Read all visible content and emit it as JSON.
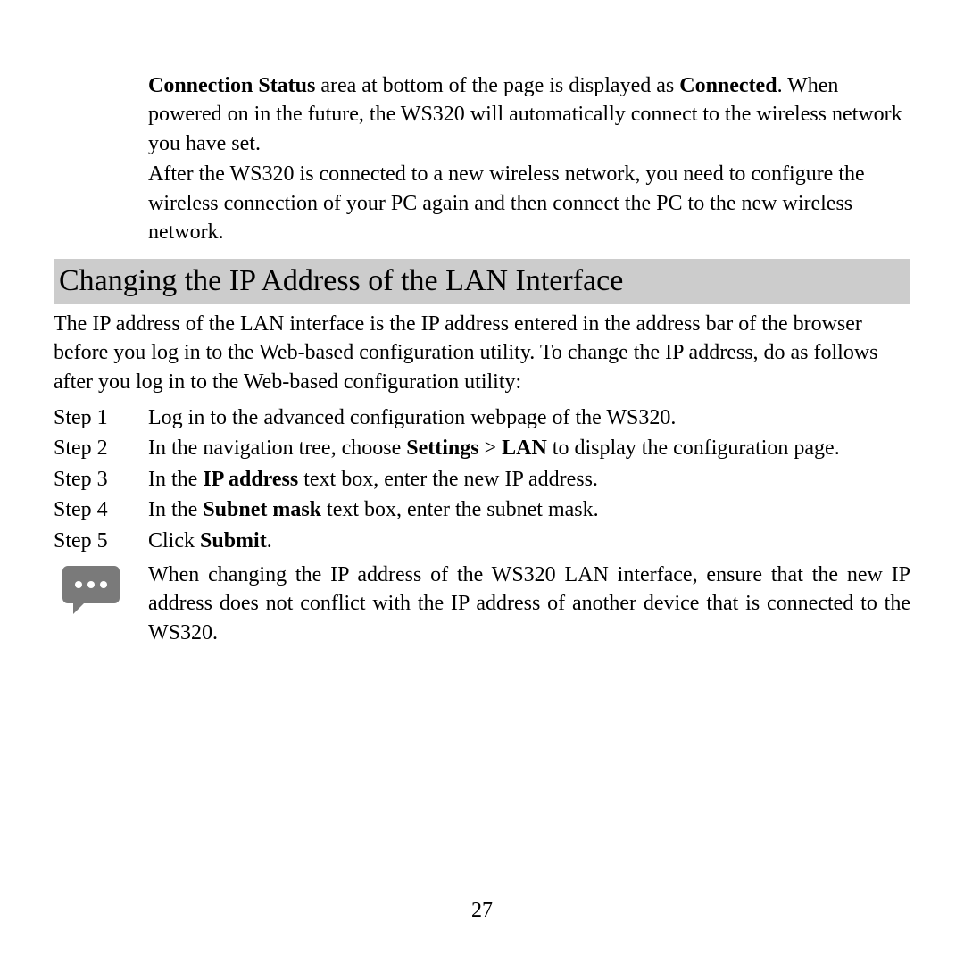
{
  "intro": {
    "p1_pre": "Connection Status",
    "p1_mid": " area at bottom of the page is displayed as ",
    "p1_bold2": "Connected",
    "p1_post": ". When powered on in the future, the WS320 will automatically connect to the wireless network you have set.",
    "p2": "After the WS320 is connected to a new wireless network, you need to configure the wireless connection of your PC again and then connect the PC to the new wireless network."
  },
  "heading": "Changing the IP Address of the LAN Interface",
  "body": "The IP address of the LAN interface is the IP address entered in the address bar of the browser before you log in to the Web-based configuration utility. To change the IP address, do as follows after you log in to the Web-based configuration utility:",
  "steps": [
    {
      "label": "Step 1",
      "runs": [
        {
          "t": "Log in to the advanced configuration webpage of the WS320.",
          "b": false
        }
      ]
    },
    {
      "label": "Step 2",
      "runs": [
        {
          "t": "In the navigation tree, choose ",
          "b": false
        },
        {
          "t": "Settings",
          "b": true
        },
        {
          "t": " > ",
          "b": false
        },
        {
          "t": "LAN",
          "b": true
        },
        {
          "t": " to display the configuration page.",
          "b": false
        }
      ]
    },
    {
      "label": "Step 3",
      "runs": [
        {
          "t": "In the ",
          "b": false
        },
        {
          "t": "IP address",
          "b": true
        },
        {
          "t": " text box, enter the new IP address.",
          "b": false
        }
      ]
    },
    {
      "label": "Step 4",
      "runs": [
        {
          "t": "In the ",
          "b": false
        },
        {
          "t": "Subnet mask",
          "b": true
        },
        {
          "t": " text box, enter the subnet mask.",
          "b": false
        }
      ]
    },
    {
      "label": "Step 5",
      "runs": [
        {
          "t": "Click ",
          "b": false
        },
        {
          "t": "Submit",
          "b": true
        },
        {
          "t": ".",
          "b": false
        }
      ]
    }
  ],
  "note": "When changing the IP address of the WS320 LAN interface, ensure that the new IP address does not conflict with the IP address of another device that is connected to the WS320.",
  "page_number": "27",
  "colors": {
    "heading_bg": "#cccccc",
    "icon_fill": "#7a7a7a",
    "text": "#000000",
    "bg": "#ffffff"
  }
}
